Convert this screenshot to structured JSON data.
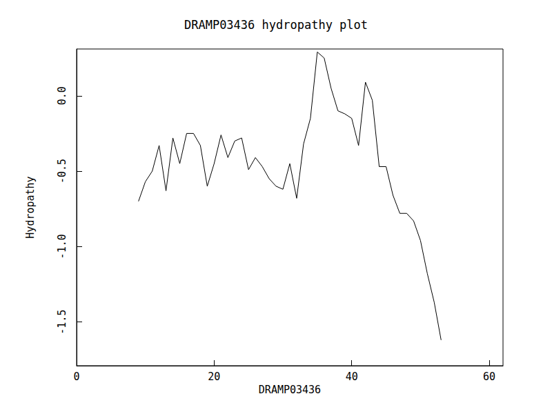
{
  "chart_data": {
    "type": "line",
    "title": "DRAMP03436 hydropathy plot",
    "x_label": "DRAMP03436",
    "y_label": "Hydropathy",
    "x": [
      9,
      10,
      11,
      12,
      13,
      14,
      15,
      16,
      17,
      18,
      19,
      20,
      21,
      22,
      23,
      24,
      25,
      26,
      27,
      28,
      29,
      30,
      31,
      32,
      33,
      34,
      35,
      36,
      37,
      38,
      39,
      40,
      41,
      42,
      43,
      44,
      45,
      46,
      47,
      48,
      49,
      50,
      51,
      52,
      53
    ],
    "values": [
      -0.7,
      -0.57,
      -0.5,
      -0.33,
      -0.63,
      -0.28,
      -0.45,
      -0.25,
      -0.25,
      -0.33,
      -0.6,
      -0.45,
      -0.26,
      -0.41,
      -0.3,
      -0.28,
      -0.49,
      -0.41,
      -0.47,
      -0.55,
      -0.6,
      -0.62,
      -0.45,
      -0.68,
      -0.32,
      -0.15,
      0.29,
      0.25,
      0.05,
      -0.1,
      -0.12,
      -0.15,
      -0.33,
      0.09,
      -0.03,
      -0.47,
      -0.47,
      -0.66,
      -0.78,
      -0.78,
      -0.83,
      -0.96,
      -1.18,
      -1.37,
      -1.62
    ],
    "color": "#000000",
    "xlim": [
      0,
      62
    ],
    "xticks": [
      0,
      20,
      40,
      60
    ],
    "ylim": [
      -1.79,
      0.31
    ],
    "yticks": [
      {
        "value": -1.5,
        "label": "-1.5"
      },
      {
        "value": -1,
        "label": "-1.0"
      },
      {
        "value": -0.5,
        "label": "-0.5"
      },
      {
        "value": 0,
        "label": "0.0"
      }
    ],
    "grid": false
  }
}
